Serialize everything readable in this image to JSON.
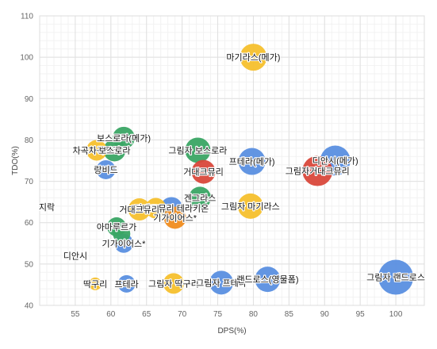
{
  "chart_data": {
    "type": "scatter",
    "bubble": true,
    "title": "",
    "xlabel": "DPS(%)",
    "ylabel": "TDO(%)",
    "xlim": [
      50,
      104
    ],
    "ylim": [
      40,
      110
    ],
    "xticks": [
      55,
      60,
      65,
      70,
      75,
      80,
      85,
      90,
      95,
      100
    ],
    "yticks": [
      40,
      50,
      60,
      70,
      80,
      90,
      100,
      110
    ],
    "grid": true,
    "legend": "none",
    "colors": {
      "blue": "#5a8fe0",
      "green": "#3aa564",
      "red": "#d9483b",
      "yellow": "#f5c02d",
      "orange": "#f08c1f"
    },
    "points": [
      {
        "label": "마기라스(메가)",
        "x": 80,
        "y": 100,
        "size": 34,
        "color": "yellow"
      },
      {
        "label": "보스로라(메가)",
        "x": 61.8,
        "y": 80.5,
        "size": 28,
        "color": "green"
      },
      {
        "label": "차곡차곡로라",
        "x": 58,
        "y": 77.5,
        "size": 26,
        "color": "yellow"
      },
      {
        "label": "보스로라",
        "x": 60.5,
        "y": 77.5,
        "size": 28,
        "color": "green"
      },
      {
        "label": "랑비드",
        "x": 59.3,
        "y": 72.8,
        "size": 24,
        "color": "blue"
      },
      {
        "label": "그림자 보스로라",
        "x": 72.2,
        "y": 77.5,
        "size": 32,
        "color": "green"
      },
      {
        "label": "프테라(메가)",
        "x": 79.8,
        "y": 74.8,
        "size": 34,
        "color": "blue"
      },
      {
        "label": "거대크뮤리",
        "x": 73,
        "y": 72.3,
        "size": 30,
        "color": "red"
      },
      {
        "label": "디안시(메가)",
        "x": 91.5,
        "y": 75,
        "size": 38,
        "color": "blue"
      },
      {
        "label": "그림자거대크뮤리",
        "x": 89,
        "y": 72.5,
        "size": 38,
        "color": "red"
      },
      {
        "label": "겐그라스",
        "x": 72.5,
        "y": 66,
        "size": 28,
        "color": "green"
      },
      {
        "label": "거대크뮤리 테라키온",
        "x": 68.5,
        "y": 63.5,
        "size": 28,
        "color": "blue"
      },
      {
        "label": "그림자 마기라스",
        "x": 79.6,
        "y": 64,
        "size": 32,
        "color": "yellow"
      },
      {
        "label": "거대크뮤리",
        "x": 64,
        "y": 63.2,
        "size": 28,
        "color": "yellow"
      },
      {
        "label": "",
        "x": 66.3,
        "y": 63.5,
        "size": 26,
        "color": "yellow"
      },
      {
        "label": "기가이어스*",
        "x": 69,
        "y": 61.2,
        "size": 28,
        "color": "orange"
      },
      {
        "label": "아마루르가",
        "x": 60.8,
        "y": 59,
        "size": 24,
        "color": "green"
      },
      {
        "label": "",
        "x": 61.5,
        "y": 57.3,
        "size": 22,
        "color": "green"
      },
      {
        "label": "기가이어스*",
        "x": 61.8,
        "y": 55,
        "size": 24,
        "color": "blue"
      },
      {
        "label": "지락",
        "x": 51,
        "y": 63.8,
        "size": 0,
        "color": "blue"
      },
      {
        "label": "디안시",
        "x": 55,
        "y": 52,
        "size": 0,
        "color": "blue"
      },
      {
        "label": "딱구리",
        "x": 57.8,
        "y": 45.2,
        "size": 16,
        "color": "yellow"
      },
      {
        "label": "프테라",
        "x": 62.2,
        "y": 45.2,
        "size": 22,
        "color": "blue"
      },
      {
        "label": "그림자 딱구리",
        "x": 68.8,
        "y": 45.3,
        "size": 26,
        "color": "yellow"
      },
      {
        "label": "그림자 프테라",
        "x": 75.5,
        "y": 45.5,
        "size": 30,
        "color": "blue"
      },
      {
        "label": "랜드로스(영물폼)",
        "x": 82,
        "y": 46.3,
        "size": 32,
        "color": "blue"
      },
      {
        "label": "그림자 랜드로스",
        "x": 100,
        "y": 46.8,
        "size": 44,
        "color": "blue"
      }
    ]
  }
}
